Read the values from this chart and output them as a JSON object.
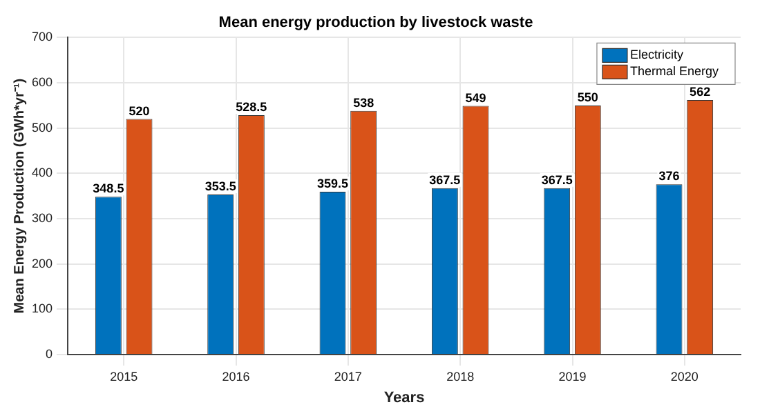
{
  "chart_data": {
    "type": "bar",
    "title": "Mean energy production by livestock waste",
    "xlabel": "Years",
    "ylabel": "Mean Energy Production (GWh*yr⁻¹)",
    "categories": [
      "2015",
      "2016",
      "2017",
      "2018",
      "2019",
      "2020"
    ],
    "series": [
      {
        "name": "Electricity",
        "color": "#0072bd",
        "values": [
          348.5,
          353.5,
          359.5,
          367.5,
          367.5,
          376
        ]
      },
      {
        "name": "Thermal Energy",
        "color": "#d95319",
        "values": [
          520,
          528.5,
          538,
          549,
          550,
          562
        ]
      }
    ],
    "ylim": [
      0,
      700
    ],
    "yticks": [
      0,
      100,
      200,
      300,
      400,
      500,
      600,
      700
    ],
    "grid": true,
    "legend": "top right",
    "data_labels": true
  }
}
